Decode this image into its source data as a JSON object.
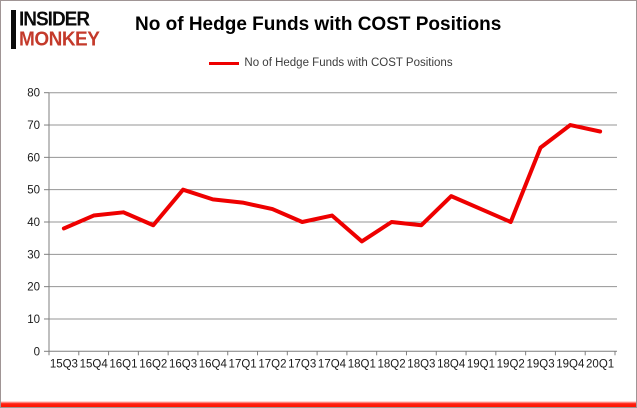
{
  "logo": {
    "line1": "INSIDER",
    "line2": "MONKEY"
  },
  "header": {
    "title": "No of Hedge Funds with COST Positions"
  },
  "legend": {
    "label": "No of Hedge Funds with COST Positions"
  },
  "colors": {
    "series_red": "#ee0000",
    "logo_red": "#c43a2b",
    "grid_gray": "#959595",
    "axis_gray": "#7f7f7f",
    "label_black": "#1a1a1a",
    "bottom_bar_red": "#ff1500"
  },
  "chart_data": {
    "type": "line",
    "title": "No of Hedge Funds with COST Positions",
    "series": [
      {
        "name": "No of Hedge Funds with COST Positions",
        "color": "#ee0000",
        "values": [
          38,
          42,
          43,
          39,
          50,
          47,
          46,
          44,
          40,
          42,
          34,
          40,
          39,
          48,
          44,
          40,
          63,
          70,
          68
        ]
      }
    ],
    "categories": [
      "15Q3",
      "15Q4",
      "16Q1",
      "16Q2",
      "16Q3",
      "16Q4",
      "17Q1",
      "17Q2",
      "17Q3",
      "17Q4",
      "18Q1",
      "18Q2",
      "18Q3",
      "18Q4",
      "19Q1",
      "19Q2",
      "19Q3",
      "19Q4",
      "20Q1"
    ],
    "xlabel": "",
    "ylabel": "",
    "ylim": [
      0,
      80
    ],
    "yticks": [
      0,
      10,
      20,
      30,
      40,
      50,
      60,
      70,
      80
    ],
    "grid": true,
    "legend_position": "top"
  }
}
